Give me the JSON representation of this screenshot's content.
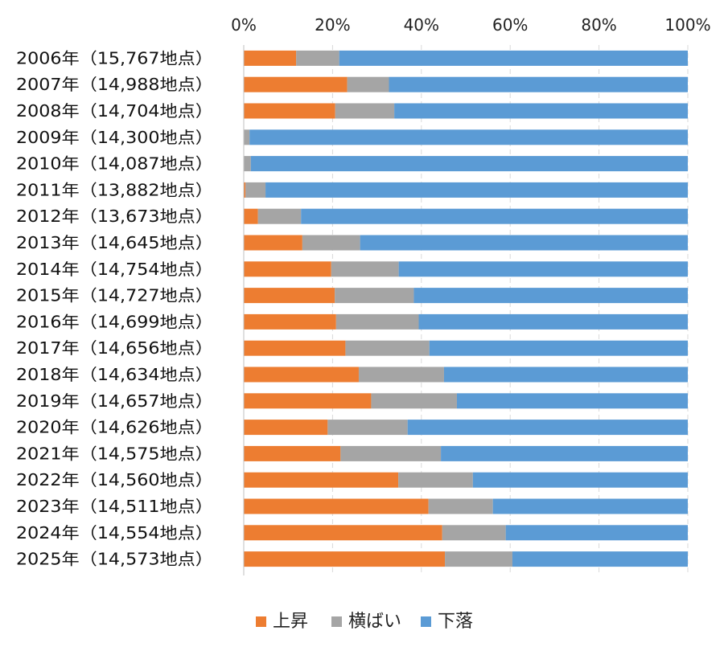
{
  "chart_data": {
    "type": "bar",
    "orientation": "horizontal",
    "stacked": "percent",
    "title": "",
    "xlabel": "",
    "ylabel": "",
    "xlim": [
      0,
      100
    ],
    "x_ticks": [
      "0%",
      "20%",
      "40%",
      "60%",
      "80%",
      "100%"
    ],
    "x_tick_values": [
      0,
      20,
      40,
      60,
      80,
      100
    ],
    "grid": "vertical dashed",
    "legend_position": "bottom",
    "categories": [
      "2006年（15,767地点）",
      "2007年（14,988地点）",
      "2008年（14,704地点）",
      "2009年（14,300地点）",
      "2010年（14,087地点）",
      "2011年（13,882地点）",
      "2012年（13,673地点）",
      "2013年（14,645地点）",
      "2014年（14,754地点）",
      "2015年（14,727地点）",
      "2016年（14,699地点）",
      "2017年（14,656地点）",
      "2018年（14,634地点）",
      "2019年（14,657地点）",
      "2020年（14,626地点）",
      "2021年（14,575地点）",
      "2022年（14,560地点）",
      "2023年（14,511地点）",
      "2024年（14,554地点）",
      "2025年（14,573地点）"
    ],
    "series": [
      {
        "name": "上昇",
        "color": "#ED7D31",
        "values": [
          11.8,
          23.3,
          20.6,
          0.1,
          0.1,
          0.4,
          3.2,
          13.2,
          19.7,
          20.5,
          20.8,
          22.9,
          25.9,
          28.7,
          18.9,
          21.8,
          34.8,
          41.6,
          44.7,
          45.3
        ]
      },
      {
        "name": "横ばい",
        "color": "#A5A5A5",
        "values": [
          9.7,
          9.4,
          13.3,
          1.2,
          1.5,
          4.5,
          9.7,
          13.0,
          15.2,
          17.8,
          18.6,
          18.9,
          19.2,
          19.3,
          18.0,
          22.6,
          16.8,
          14.5,
          14.3,
          15.2
        ]
      },
      {
        "name": "下落",
        "color": "#5B9BD5",
        "values": [
          78.5,
          67.3,
          66.1,
          98.7,
          98.4,
          95.1,
          87.1,
          73.8,
          65.1,
          61.7,
          60.6,
          58.2,
          54.9,
          52.0,
          63.1,
          55.6,
          48.4,
          43.9,
          41.0,
          39.5
        ]
      }
    ]
  },
  "colors": {
    "axis": "#BFBFBF",
    "grid": "#D9D9D9"
  }
}
